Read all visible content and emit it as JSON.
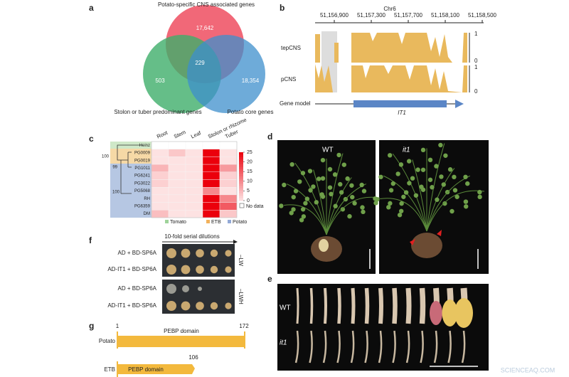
{
  "panels": {
    "a": {
      "label": "a",
      "title": "Potato-specific CNS associated genes",
      "left_set": "Stolon or tuber predominant genes",
      "right_set": "Potato core genes",
      "top_count": "17,642",
      "left_count": "503",
      "right_count": "18,354",
      "center_count": "229"
    },
    "b": {
      "label": "b",
      "chromosome": "Chr6",
      "coordinates": [
        "51,156,900",
        "51,157,300",
        "51,157,700",
        "51,158,100",
        "51,158,500"
      ],
      "tracks": [
        "tepCNS",
        "pCNS"
      ],
      "track_max": "1",
      "track_min": "0",
      "gene_model_label": "Gene model",
      "gene": "IT1"
    },
    "c": {
      "label": "c",
      "columns": [
        "Root",
        "Stem",
        "Leaf",
        "Stolon or rhizome",
        "Tuber"
      ],
      "rows": [
        "Heinz",
        "PG0009",
        "PG0019",
        "PG1011",
        "PG6241",
        "PG3022",
        "PG5068",
        "RH",
        "PG6359",
        "DM"
      ],
      "values": [
        [
          null,
          null,
          null,
          null,
          null
        ],
        [
          0,
          3,
          0,
          25,
          0
        ],
        [
          0,
          0,
          0,
          25,
          0
        ],
        [
          5,
          0,
          0,
          25,
          8
        ],
        [
          2,
          0,
          0,
          25,
          2
        ],
        [
          2,
          0,
          0,
          25,
          2
        ],
        [
          0,
          0,
          0,
          10,
          0
        ],
        [
          0,
          0,
          0,
          25,
          10
        ],
        [
          0,
          0,
          0,
          25,
          15
        ],
        [
          4,
          0,
          0,
          25,
          3
        ]
      ],
      "bootstrap": [
        "100",
        "99",
        "100"
      ],
      "colorbar_range": [
        0,
        25
      ],
      "colorbar_ticks": [
        25,
        20,
        15,
        10,
        5,
        0
      ],
      "no_data": "No data",
      "groups": [
        "Tomato",
        "ETB",
        "Potato"
      ]
    },
    "d": {
      "label": "d",
      "genotypes": [
        "WT",
        "it1"
      ]
    },
    "e": {
      "label": "e",
      "genotypes": [
        "WT",
        "it1"
      ]
    },
    "f": {
      "label": "f",
      "dilution": "10-fold serial dilutions",
      "rows": [
        "AD + BD-SP6A",
        "AD-IT1 + BD-SP6A",
        "AD + BD-SP6A",
        "AD-IT1 + BD-SP6A"
      ],
      "media": [
        "–LW",
        "–LWH"
      ]
    },
    "g": {
      "label": "g",
      "proteins": [
        {
          "name": "Potato",
          "start": "1",
          "end": "172",
          "domain": "PEBP domain"
        },
        {
          "name": "ETB",
          "end": "106",
          "domain": "PEBP domain"
        }
      ]
    },
    "watermark": "SCIENCEAQ.COM"
  }
}
